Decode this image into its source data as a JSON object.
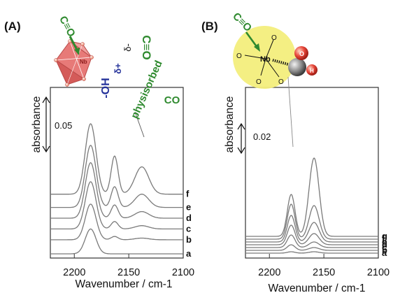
{
  "chart_data": [
    {
      "panel": "(A)",
      "type": "line",
      "xlabel": "Wavenumber / cm-1",
      "ylabel": "absorbance",
      "xlim": [
        2222,
        2100
      ],
      "xticks": [
        "2200",
        "2150",
        "2100"
      ],
      "scale_bar": "0.05",
      "annotations": {
        "oh": "-OH",
        "delta_plus": "δ+",
        "delta_minus": "δ-",
        "co_adsorbed": "C≡O",
        "physisorbed_line1": "physisorbed",
        "physisorbed_line2": "CO",
        "co_cluster": "C≡O",
        "nb": "Nb"
      },
      "peaks": [
        {
          "position": 2185,
          "width": 7
        },
        {
          "position": 2163,
          "width": 4.5
        },
        {
          "position": 2138,
          "width": 9
        }
      ],
      "series": [
        {
          "label": "a",
          "offset": 0.0,
          "amplitudes": [
            0.03,
            0.0,
            0.0
          ]
        },
        {
          "label": "b",
          "offset": 0.017,
          "amplitudes": [
            0.043,
            0.004,
            0.002
          ]
        },
        {
          "label": "c",
          "offset": 0.03,
          "amplitudes": [
            0.057,
            0.009,
            0.004
          ]
        },
        {
          "label": "d",
          "offset": 0.043,
          "amplitudes": [
            0.067,
            0.016,
            0.008
          ]
        },
        {
          "label": "e",
          "offset": 0.056,
          "amplitudes": [
            0.075,
            0.025,
            0.016
          ]
        },
        {
          "label": "f",
          "offset": 0.072,
          "amplitudes": [
            0.085,
            0.046,
            0.033
          ]
        }
      ]
    },
    {
      "panel": "(B)",
      "type": "line",
      "xlabel": "Wavenumber / cm-1",
      "ylabel": "absorbance",
      "xlim": [
        2222,
        2100
      ],
      "xticks": [
        "2200",
        "2150",
        "2100"
      ],
      "scale_bar": "0.02",
      "annotations": {
        "nb": "Nb",
        "co_adsorbed": "C≡O",
        "o": "O",
        "h": "H"
      },
      "peaks": [
        {
          "position": 2180,
          "width": 5
        },
        {
          "position": 2159,
          "width": 6.5
        }
      ],
      "series": [
        {
          "label": "a",
          "offset": 0.0,
          "amplitudes": [
            0.001,
            0.001
          ]
        },
        {
          "label": "b",
          "offset": 0.002,
          "amplitudes": [
            0.004,
            0.002
          ]
        },
        {
          "label": "c",
          "offset": 0.004,
          "amplitudes": [
            0.009,
            0.004
          ]
        },
        {
          "label": "d",
          "offset": 0.006,
          "amplitudes": [
            0.014,
            0.008
          ]
        },
        {
          "label": "e",
          "offset": 0.008,
          "amplitudes": [
            0.019,
            0.014
          ]
        },
        {
          "label": "f",
          "offset": 0.01,
          "amplitudes": [
            0.025,
            0.024
          ]
        },
        {
          "label": "g",
          "offset": 0.012,
          "amplitudes": [
            0.03,
            0.056
          ]
        }
      ]
    }
  ]
}
